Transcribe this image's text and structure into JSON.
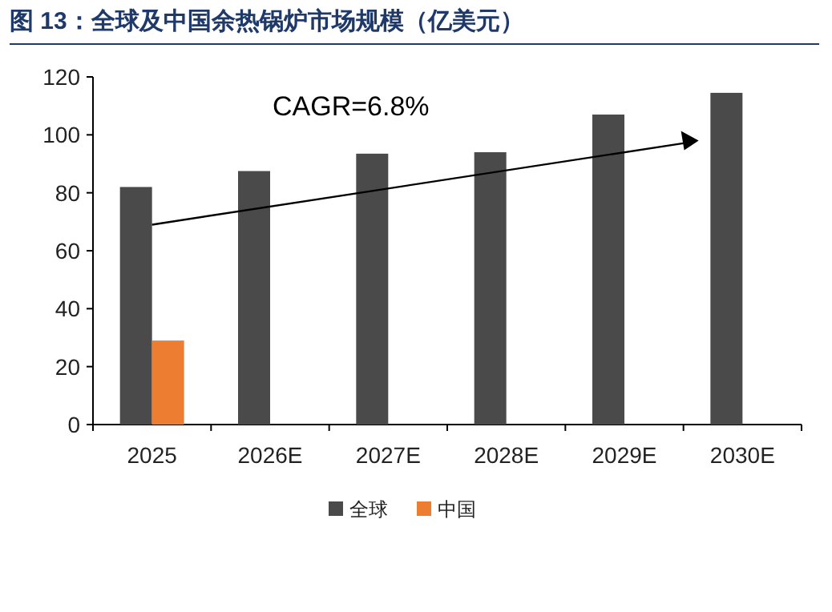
{
  "chart_data": {
    "type": "bar",
    "title": "图 13：全球及中国余热锅炉市场规模（亿美元）",
    "categories": [
      "2025",
      "2026E",
      "2027E",
      "2028E",
      "2029E",
      "2030E"
    ],
    "series": [
      {
        "name": "全球",
        "color": "#4a4a4a",
        "values": [
          82,
          87.5,
          93.5,
          94,
          107,
          114.5
        ]
      },
      {
        "name": "中国",
        "color": "#ed7d31",
        "values": [
          29,
          null,
          null,
          null,
          null,
          null
        ]
      }
    ],
    "ylim": [
      0,
      120
    ],
    "yticks": [
      0,
      20,
      40,
      60,
      80,
      100,
      120
    ],
    "grid": false,
    "legend": "bottom",
    "annotations": [
      "CAGR=6.8%"
    ]
  }
}
